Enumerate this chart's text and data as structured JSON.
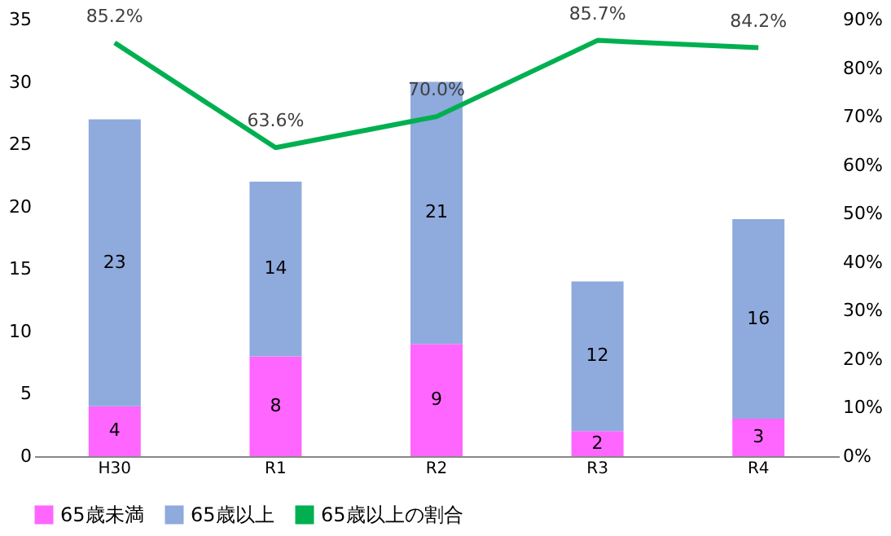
{
  "chart_data": {
    "type": "bar",
    "stacked": true,
    "categories": [
      "H30",
      "R1",
      "R2",
      "R3",
      "R4"
    ],
    "series": [
      {
        "name": "65歳未満",
        "color": "#ff66ff",
        "values": [
          4,
          8,
          9,
          2,
          3
        ],
        "value_labels": [
          "4",
          "8",
          "9",
          "2",
          "3"
        ]
      },
      {
        "name": "65歳以上",
        "color": "#8faadc",
        "values": [
          23,
          14,
          21,
          12,
          16
        ],
        "value_labels": [
          "23",
          "14",
          "21",
          "12",
          "16"
        ]
      },
      {
        "name": "65歳以上の割合",
        "type": "line",
        "axis": "y2",
        "color": "#00b050",
        "values": [
          85.2,
          63.6,
          70.0,
          85.7,
          84.2
        ],
        "value_labels": [
          "85.2%",
          "63.6%",
          "70.0%",
          "85.7%",
          "84.2%"
        ]
      }
    ],
    "ylim": [
      0,
      35
    ],
    "yticks": [
      0,
      5,
      10,
      15,
      20,
      25,
      30,
      35
    ],
    "y2lim": [
      0,
      90
    ],
    "y2ticks": [
      {
        "value": 0,
        "label": "0%"
      },
      {
        "value": 10,
        "label": "10%"
      },
      {
        "value": 20,
        "label": "20%"
      },
      {
        "value": 30,
        "label": "30%"
      },
      {
        "value": 40,
        "label": "40%"
      },
      {
        "value": 50,
        "label": "50%"
      },
      {
        "value": 60,
        "label": "60%"
      },
      {
        "value": 70,
        "label": "70%"
      },
      {
        "value": 80,
        "label": "80%"
      },
      {
        "value": 90,
        "label": "90%"
      }
    ],
    "legend": "bottom",
    "grid": false
  }
}
